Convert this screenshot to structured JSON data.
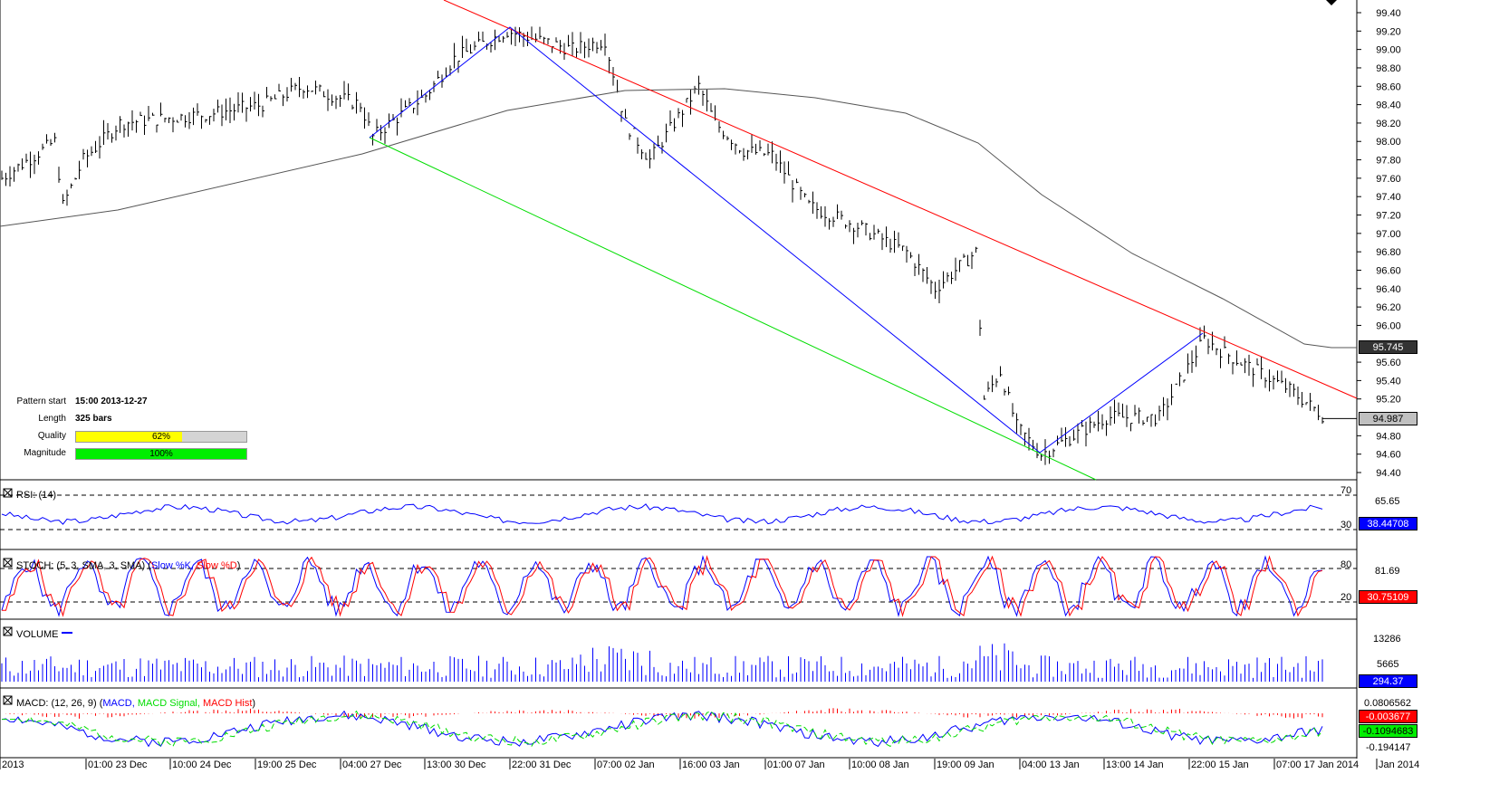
{
  "chart_data": {
    "type": "bar",
    "title": "",
    "price_axis": {
      "ylim": [
        94.4,
        99.4
      ],
      "ticks": [
        "99.40",
        "99.20",
        "99.00",
        "98.80",
        "98.60",
        "98.40",
        "98.20",
        "98.00",
        "97.80",
        "97.60",
        "97.40",
        "97.20",
        "97.00",
        "96.80",
        "96.60",
        "96.40",
        "96.20",
        "96.00",
        "95.60",
        "95.40",
        "95.20",
        "94.80",
        "94.60",
        "94.40"
      ]
    },
    "x_ticks": [
      "2013",
      "01:00 23 Dec",
      "10:00 24 Dec",
      "19:00 25 Dec",
      "04:00 27 Dec",
      "13:00 30 Dec",
      "22:00 31 Dec",
      "07:00 02 Jan",
      "16:00 03 Jan",
      "01:00 07 Jan",
      "10:00 08 Jan",
      "19:00 09 Jan",
      "04:00 13 Jan",
      "13:00 14 Jan",
      "22:00 15 Jan",
      "07:00 17 Jan 2014",
      "Jan 2014"
    ],
    "price_path": {
      "bar_index": [
        0,
        13,
        15,
        20,
        29,
        51,
        64,
        74,
        88,
        91,
        104,
        111,
        124,
        140,
        148,
        153,
        159,
        171,
        175,
        182,
        189,
        198,
        209,
        222,
        229,
        239,
        241,
        245,
        249,
        255,
        271,
        284,
        295,
        300,
        316,
        325
      ],
      "values": [
        97.6,
        98.0,
        97.3,
        97.8,
        98.2,
        98.3,
        98.4,
        98.6,
        98.4,
        98.05,
        98.5,
        98.9,
        99.2,
        99.0,
        99.1,
        98.2,
        97.8,
        98.6,
        98.2,
        97.9,
        97.85,
        97.3,
        97.1,
        96.8,
        96.4,
        96.8,
        95.2,
        95.5,
        94.9,
        94.6,
        95.0,
        95.0,
        95.85,
        95.7,
        95.3,
        94.99
      ]
    },
    "last_price": "94.987",
    "moving_average_last": "95.745",
    "indicators": {
      "rsi": {
        "label": "RSI: (14)",
        "levels": [
          "70",
          "30"
        ],
        "axis_tick": "65.65",
        "last": "38.44708"
      },
      "stoch": {
        "label": "STOCH: (5, 3, SMA, 3, SMA)",
        "k_label": "Slow %K",
        "d_label": "Slow %D",
        "levels": [
          "80",
          "20"
        ],
        "axis_tick": "81.69",
        "last": "30.75109"
      },
      "volume": {
        "label": "VOLUME",
        "axis_ticks": [
          "13286",
          "5665"
        ],
        "last": "294.37"
      },
      "macd": {
        "label": "MACD: (12, 26, 9)",
        "macd_label": "MACD",
        "signal_label": "MACD Signal",
        "hist_label": "MACD Hist",
        "axis_ticks": [
          "0.0806562",
          "-0.194147"
        ],
        "hist_last": "-0.003677",
        "signal_last": "-0.1094683"
      }
    }
  },
  "pattern": {
    "start_label": "Pattern start",
    "start_value": "15:00 2013-12-27",
    "length_label": "Length",
    "length_value": "325 bars",
    "quality_label": "Quality",
    "quality_pct": 62,
    "quality_text": "62%",
    "magnitude_label": "Magnitude",
    "magnitude_pct": 100,
    "magnitude_text": "100%"
  },
  "colors": {
    "resistance": "#ff0000",
    "support": "#00dd00",
    "pattern": "#0000ff",
    "ma": "#555555",
    "quality": "#ffff00",
    "magnitude": "#00ee00"
  }
}
